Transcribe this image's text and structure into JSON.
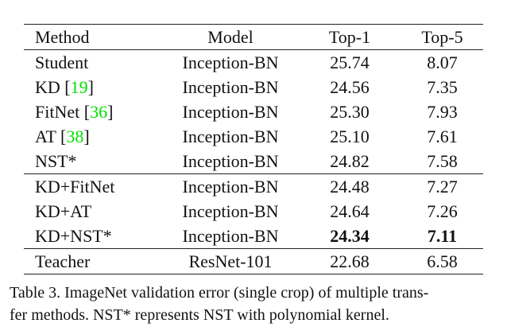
{
  "table": {
    "header": [
      "Method",
      "Model",
      "Top-1",
      "Top-5"
    ],
    "groups": [
      [
        {
          "method": [
            "Student"
          ],
          "model": "Inception-BN",
          "top1": "25.74",
          "top5": "8.07"
        },
        {
          "method": [
            "KD [",
            "19",
            "]"
          ],
          "model": "Inception-BN",
          "top1": "24.56",
          "top5": "7.35"
        },
        {
          "method": [
            "FitNet [",
            "36",
            "]"
          ],
          "model": "Inception-BN",
          "top1": "25.30",
          "top5": "7.93"
        },
        {
          "method": [
            "AT [",
            "38",
            "]"
          ],
          "model": "Inception-BN",
          "top1": "25.10",
          "top5": "7.61"
        },
        {
          "method": [
            "NST*"
          ],
          "model": "Inception-BN",
          "top1": "24.82",
          "top5": "7.58"
        }
      ],
      [
        {
          "method": [
            "KD+FitNet"
          ],
          "model": "Inception-BN",
          "top1": "24.48",
          "top5": "7.27"
        },
        {
          "method": [
            "KD+AT"
          ],
          "model": "Inception-BN",
          "top1": "24.64",
          "top5": "7.26"
        },
        {
          "method": [
            "KD+NST*"
          ],
          "model": "Inception-BN",
          "top1": "24.34",
          "top5": "7.11",
          "bold": true
        }
      ],
      [
        {
          "method": [
            "Teacher"
          ],
          "model": "ResNet-101",
          "top1": "22.68",
          "top5": "6.58"
        }
      ]
    ]
  },
  "caption": [
    "Table 3. ImageNet validation error (single crop) of multiple trans-",
    "fer methods. NST* represents NST with polynomial kernel."
  ]
}
